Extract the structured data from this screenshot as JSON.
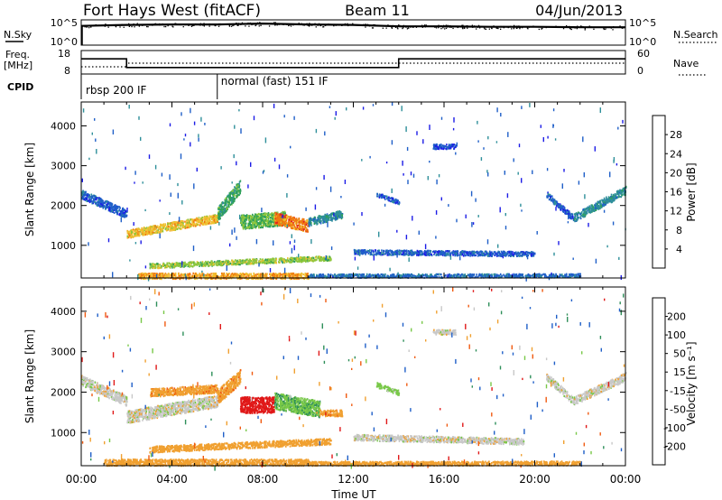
{
  "header": {
    "radar": "Fort Hays West (fitACF)",
    "beam": "Beam 11",
    "date": "04/Jun/2013"
  },
  "colors": {
    "power_scale": [
      "#1c1ce6",
      "#1f5fc8",
      "#2e8f9a",
      "#2fa05a",
      "#8cc63c",
      "#f0c030",
      "#f07a10",
      "#e02020"
    ],
    "velocity_scale": [
      "#e01818",
      "#f05a10",
      "#f0a030",
      "#c8c8c8",
      "#c8c8c8",
      "#78c848",
      "#2e8f5a",
      "#1f5fc8",
      "#1c1ce6"
    ]
  },
  "chart_data": [
    {
      "type": "line",
      "panel": "nsky-nsearch",
      "left_label": "N.Sky",
      "right_label": "N.Search",
      "left_ticks": [
        "10^5",
        "10^0"
      ],
      "right_ticks": [
        "10^5",
        "10^0"
      ],
      "x_hours": [
        0,
        2,
        4,
        6,
        8,
        10,
        12,
        14,
        16,
        18,
        20,
        22,
        24
      ],
      "n_sky_log10": [
        4.1,
        4.3,
        4.4,
        4.4,
        4.6,
        4.4,
        4.3,
        4.0,
        4.0,
        3.9,
        3.9,
        3.8,
        3.8
      ]
    },
    {
      "type": "line",
      "panel": "freq-nave",
      "left_label_top": "Freq.",
      "left_label_unit": "[MHz]",
      "right_label": "Nave",
      "left_ticks": [
        "18",
        "8"
      ],
      "right_ticks": [
        "60",
        "0"
      ],
      "freq_steps": [
        {
          "start": 0,
          "end": 2,
          "mhz": 15
        },
        {
          "start": 2,
          "end": 14,
          "mhz": 11
        },
        {
          "start": 14,
          "end": 24,
          "mhz": 15
        }
      ],
      "nave_steps": [
        {
          "start": 0,
          "end": 2,
          "value": 20
        },
        {
          "start": 2,
          "end": 24,
          "value": 30
        }
      ]
    },
    {
      "type": "table",
      "panel": "cpid",
      "label": "CPID",
      "entries": [
        {
          "start": 0,
          "name": "rbsp 200 IF"
        },
        {
          "start": 6,
          "name": "normal (fast) 151 IF"
        }
      ]
    },
    {
      "type": "heatmap",
      "panel": "power",
      "ylabel": "Slant Range [km]",
      "yticks": [
        "1000",
        "2000",
        "3000",
        "4000"
      ],
      "ylim": [
        180,
        4600
      ],
      "colorbar_label": "Power [dB]",
      "colorbar_ticks": [
        "4",
        "8",
        "12",
        "16",
        "20",
        "24",
        "28"
      ],
      "clim": [
        0,
        32
      ],
      "bands": [
        {
          "t0": 0.0,
          "t1": 2.0,
          "r_start": 2300,
          "r_end": 1800,
          "width": 220,
          "p": 6
        },
        {
          "t0": 2.0,
          "t1": 6.0,
          "r_start": 1300,
          "r_end": 1700,
          "width": 200,
          "p": 22
        },
        {
          "t0": 6.0,
          "t1": 7.0,
          "r_start": 1800,
          "r_end": 2500,
          "width": 350,
          "p": 14
        },
        {
          "t0": 7.0,
          "t1": 9.0,
          "r_start": 1600,
          "r_end": 1700,
          "width": 350,
          "p": 16
        },
        {
          "t0": 8.5,
          "t1": 10.0,
          "r_start": 1700,
          "r_end": 1500,
          "width": 300,
          "p": 26
        },
        {
          "t0": 10.0,
          "t1": 11.5,
          "r_start": 1600,
          "r_end": 1800,
          "width": 200,
          "p": 10
        },
        {
          "t0": 12.0,
          "t1": 20.0,
          "r_start": 850,
          "r_end": 800,
          "width": 120,
          "p": 6
        },
        {
          "t0": 3.0,
          "t1": 11.0,
          "r_start": 500,
          "r_end": 700,
          "width": 120,
          "p": 18
        },
        {
          "t0": 2.5,
          "t1": 10.0,
          "r_start": 250,
          "r_end": 250,
          "width": 140,
          "p": 24
        },
        {
          "t0": 10.0,
          "t1": 22.0,
          "r_start": 250,
          "r_end": 260,
          "width": 90,
          "p": 7
        },
        {
          "t0": 20.5,
          "t1": 21.7,
          "r_start": 2300,
          "r_end": 1700,
          "width": 150,
          "p": 6
        },
        {
          "t0": 21.7,
          "t1": 24.0,
          "r_start": 1700,
          "r_end": 2400,
          "width": 200,
          "p": 10
        },
        {
          "t0": 13.0,
          "t1": 14.0,
          "r_start": 2300,
          "r_end": 2100,
          "width": 100,
          "p": 6
        },
        {
          "t0": 15.5,
          "t1": 16.5,
          "r_start": 3500,
          "r_end": 3500,
          "width": 120,
          "p": 5
        }
      ]
    },
    {
      "type": "heatmap",
      "panel": "velocity",
      "ylabel": "Slant Range [km]",
      "yticks": [
        "1000",
        "2000",
        "3000",
        "4000"
      ],
      "ylim": [
        180,
        4600
      ],
      "colorbar_label": "Velocity [m s⁻¹]",
      "colorbar_ticks": [
        "200",
        "100",
        "50",
        "15",
        "-15",
        "-50",
        "-100",
        "-200"
      ],
      "xlabel": "Time UT",
      "xticks": [
        "00:00",
        "04:00",
        "08:00",
        "12:00",
        "16:00",
        "20:00",
        "00:00"
      ],
      "xlim_hours": [
        0,
        24
      ],
      "bands": [
        {
          "t0": 0.0,
          "t1": 2.0,
          "r_start": 2300,
          "r_end": 1800,
          "width": 250,
          "v": 0
        },
        {
          "t0": 2.0,
          "t1": 6.0,
          "r_start": 1400,
          "r_end": 1800,
          "width": 300,
          "v": 0
        },
        {
          "t0": 3.0,
          "t1": 6.0,
          "r_start": 2000,
          "r_end": 2100,
          "width": 200,
          "v": -60
        },
        {
          "t0": 6.0,
          "t1": 7.0,
          "r_start": 1900,
          "r_end": 2400,
          "width": 350,
          "v": -60
        },
        {
          "t0": 7.0,
          "t1": 8.5,
          "r_start": 1700,
          "r_end": 1700,
          "width": 400,
          "v": -220
        },
        {
          "t0": 8.5,
          "t1": 10.5,
          "r_start": 1800,
          "r_end": 1600,
          "width": 400,
          "v": 40
        },
        {
          "t0": 10.5,
          "t1": 11.5,
          "r_start": 1500,
          "r_end": 1500,
          "width": 150,
          "v": -60
        },
        {
          "t0": 12.0,
          "t1": 19.5,
          "r_start": 900,
          "r_end": 800,
          "width": 150,
          "v": 0
        },
        {
          "t0": 3.0,
          "t1": 11.0,
          "r_start": 600,
          "r_end": 800,
          "width": 150,
          "v": -40
        },
        {
          "t0": 1.0,
          "t1": 10.0,
          "r_start": 280,
          "r_end": 280,
          "width": 160,
          "v": -50
        },
        {
          "t0": 10.0,
          "t1": 22.0,
          "r_start": 250,
          "r_end": 260,
          "width": 100,
          "v": -50
        },
        {
          "t0": 20.5,
          "t1": 21.7,
          "r_start": 2400,
          "r_end": 1800,
          "width": 180,
          "v": 0
        },
        {
          "t0": 21.7,
          "t1": 24.0,
          "r_start": 1800,
          "r_end": 2400,
          "width": 200,
          "v": 0
        },
        {
          "t0": 13.0,
          "t1": 14.0,
          "r_start": 2200,
          "r_end": 2000,
          "width": 120,
          "v": 30
        },
        {
          "t0": 15.5,
          "t1": 16.5,
          "r_start": 3500,
          "r_end": 3500,
          "width": 120,
          "v": 0
        }
      ]
    }
  ]
}
